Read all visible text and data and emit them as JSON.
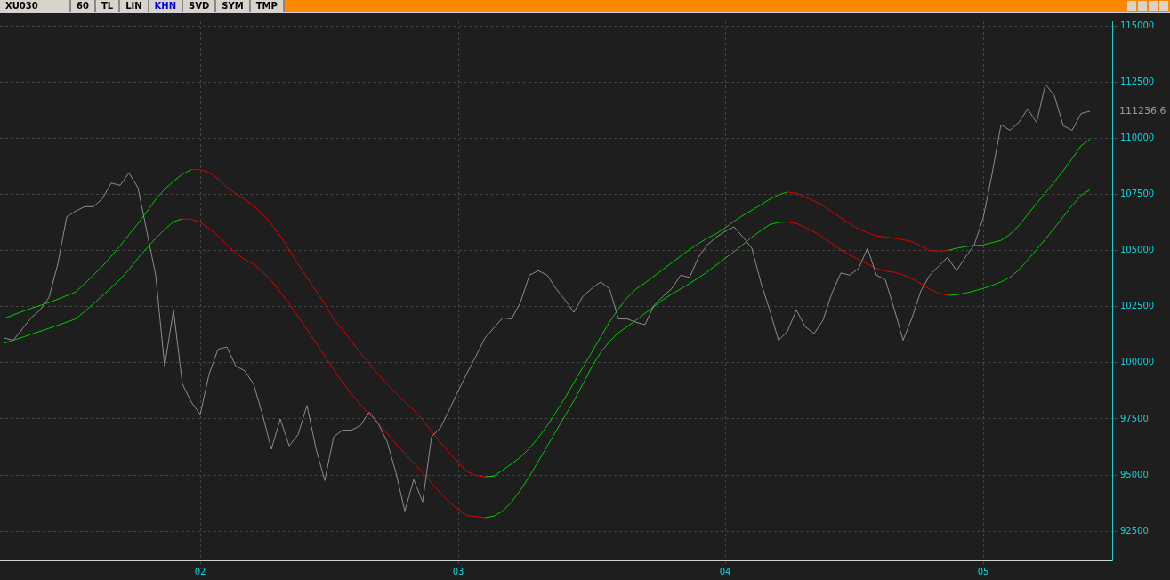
{
  "chart_data": {
    "type": "line",
    "title": "XU030",
    "annotations": [
      "60",
      "TL",
      "LIN",
      "KHN",
      "SVD",
      "SYM",
      "TMP",
      "111236.6"
    ],
    "categories": [
      null,
      null,
      null,
      null,
      null,
      null,
      null,
      null,
      null,
      null,
      null,
      null,
      null,
      null,
      null,
      null,
      null,
      null,
      null,
      null,
      null,
      null,
      "02",
      null,
      null,
      null,
      null,
      null,
      null,
      null,
      null,
      null,
      null,
      null,
      null,
      null,
      null,
      null,
      null,
      null,
      null,
      null,
      null,
      null,
      null,
      null,
      null,
      null,
      null,
      null,
      null,
      "03",
      null,
      null,
      null,
      null,
      null,
      null,
      null,
      null,
      null,
      null,
      null,
      null,
      null,
      null,
      null,
      null,
      null,
      null,
      null,
      null,
      null,
      null,
      null,
      null,
      null,
      null,
      null,
      null,
      null,
      "04",
      null,
      null,
      null,
      null,
      null,
      null,
      null,
      null,
      null,
      null,
      null,
      null,
      null,
      null,
      null,
      null,
      null,
      null,
      null,
      null,
      null,
      null,
      null,
      null,
      null,
      null,
      null,
      null,
      "05",
      null,
      null,
      null,
      null,
      null,
      null,
      null,
      null,
      null,
      null,
      null,
      null,
      null,
      null
    ],
    "ylim": [
      91200,
      115200
    ],
    "yticks": [
      92500,
      95000,
      97500,
      100000,
      102500,
      105000,
      107500,
      110000,
      112500,
      115000
    ],
    "grid": true,
    "legend": false,
    "marker": "none",
    "line_style": "solid",
    "series": [
      {
        "color": "#8c8c8c",
        "values": [
          101100,
          101000,
          101500,
          102000,
          102350,
          102900,
          104400,
          106500,
          106750,
          106950,
          106950,
          107300,
          108000,
          107900,
          108450,
          107800,
          105850,
          103900,
          99850,
          102350,
          99050,
          98250,
          97700,
          99500,
          100600,
          100700,
          99850,
          99650,
          99050,
          97700,
          96150,
          97500,
          96300,
          96800,
          98100,
          96200,
          94750,
          96700,
          97000,
          97000,
          97200,
          97800,
          97300,
          96500,
          95100,
          93400,
          94800,
          93800,
          96700,
          97100,
          97900,
          98750,
          99550,
          100300,
          101100,
          101550,
          102000,
          101950,
          102700,
          103900,
          104100,
          103900,
          103300,
          102800,
          102250,
          102950,
          103300,
          103600,
          103300,
          101950,
          101950,
          101800,
          101700,
          102550,
          102950,
          103300,
          103900,
          103800,
          104700,
          105250,
          105600,
          105850,
          106050,
          105600,
          105100,
          103600,
          102350,
          101000,
          101400,
          102350,
          101600,
          101300,
          101900,
          103100,
          104000,
          103900,
          104200,
          105100,
          103900,
          103700,
          102400,
          101000,
          102000,
          103200,
          103900,
          104300,
          104700,
          104100,
          104700,
          105250,
          106450,
          108400,
          110600,
          110350,
          110700,
          111300,
          110700,
          112400,
          111900,
          110550,
          110350,
          111100,
          111200,
          null,
          null
        ]
      },
      {
        "color": "#00cc00",
        "values": [
          101980,
          102130,
          102280,
          102420,
          102550,
          102680,
          102830,
          102990,
          103150,
          103520,
          103900,
          104300,
          104740,
          105210,
          105700,
          106200,
          106730,
          107280,
          107720,
          108080,
          108400,
          108600,
          null,
          null,
          null,
          null,
          null,
          null,
          null,
          null,
          null,
          null,
          null,
          null,
          null,
          null,
          null,
          null,
          null,
          null,
          null,
          null,
          null,
          null,
          null,
          null,
          null,
          null,
          null,
          null,
          null,
          null,
          null,
          null,
          94920,
          94950,
          95220,
          95500,
          95800,
          96190,
          96660,
          97200,
          97800,
          98440,
          99110,
          99790,
          100460,
          101140,
          101810,
          102400,
          102900,
          103290,
          103560,
          103850,
          104150,
          104450,
          104750,
          105040,
          105310,
          105550,
          105750,
          106000,
          106300,
          106560,
          106790,
          107030,
          107280,
          107470,
          107600,
          null,
          null,
          null,
          null,
          null,
          null,
          null,
          null,
          null,
          null,
          null,
          null,
          null,
          null,
          null,
          null,
          null,
          105000,
          105100,
          105170,
          105220,
          105250,
          105350,
          105450,
          105720,
          106100,
          106600,
          107090,
          107560,
          108050,
          108550,
          109090,
          109660,
          109950,
          null,
          null
        ]
      },
      {
        "color": "#e00000",
        "values": [
          null,
          null,
          null,
          null,
          null,
          null,
          null,
          null,
          null,
          null,
          null,
          null,
          null,
          null,
          null,
          null,
          null,
          null,
          null,
          null,
          null,
          108600,
          108600,
          108470,
          108200,
          107800,
          107530,
          107270,
          107000,
          106630,
          106180,
          105650,
          105020,
          104400,
          103800,
          103210,
          102640,
          101920,
          101490,
          100950,
          100450,
          99960,
          99490,
          99050,
          98650,
          98260,
          97890,
          97450,
          96950,
          96460,
          95990,
          95550,
          95150,
          94980,
          94920,
          null,
          null,
          null,
          null,
          null,
          null,
          null,
          null,
          null,
          null,
          null,
          null,
          null,
          null,
          null,
          null,
          null,
          null,
          null,
          null,
          null,
          null,
          null,
          null,
          null,
          null,
          null,
          null,
          null,
          null,
          null,
          null,
          null,
          107600,
          107550,
          107380,
          107200,
          107000,
          106730,
          106450,
          106200,
          105950,
          105800,
          105650,
          105600,
          105550,
          105480,
          105400,
          105200,
          105000,
          104970,
          105000,
          null,
          null,
          null,
          null,
          null,
          null,
          null,
          null,
          null,
          null,
          null,
          null,
          null,
          null,
          null,
          null,
          null,
          null
        ]
      },
      {
        "color": "#00cc00",
        "values": [
          100870,
          101000,
          101130,
          101270,
          101400,
          101530,
          101670,
          101810,
          101950,
          102280,
          102630,
          102980,
          103340,
          103710,
          104150,
          104650,
          105110,
          105540,
          105930,
          106280,
          106410,
          null,
          null,
          null,
          null,
          null,
          null,
          null,
          null,
          null,
          null,
          null,
          null,
          null,
          null,
          null,
          null,
          null,
          null,
          null,
          null,
          null,
          null,
          null,
          null,
          null,
          null,
          null,
          null,
          null,
          null,
          null,
          null,
          null,
          93100,
          93170,
          93400,
          93800,
          94330,
          94940,
          95610,
          96290,
          96960,
          97640,
          98310,
          99040,
          99810,
          100450,
          100950,
          101340,
          101610,
          101900,
          102200,
          102500,
          102800,
          103060,
          103290,
          103530,
          103780,
          104050,
          104350,
          104650,
          104950,
          105260,
          105590,
          105880,
          106150,
          106250,
          106270,
          null,
          null,
          null,
          null,
          null,
          null,
          null,
          null,
          null,
          null,
          null,
          null,
          null,
          null,
          null,
          null,
          null,
          103000,
          103030,
          103100,
          103200,
          103310,
          103440,
          103600,
          103800,
          104130,
          104580,
          105040,
          105510,
          106000,
          106500,
          107000,
          107460,
          107700,
          null,
          null
        ]
      },
      {
        "color": "#e00000",
        "values": [
          null,
          null,
          null,
          null,
          null,
          null,
          null,
          null,
          null,
          null,
          null,
          null,
          null,
          null,
          null,
          null,
          null,
          null,
          null,
          null,
          106410,
          106380,
          106250,
          105980,
          105650,
          105250,
          104880,
          104600,
          104400,
          104070,
          103650,
          103150,
          102620,
          102060,
          101490,
          100900,
          100300,
          99710,
          99140,
          98610,
          98140,
          97700,
          97300,
          96860,
          96390,
          95950,
          95550,
          95110,
          94640,
          94200,
          93800,
          93470,
          93200,
          93150,
          93100,
          null,
          null,
          null,
          null,
          null,
          null,
          null,
          null,
          null,
          null,
          null,
          null,
          null,
          null,
          null,
          null,
          null,
          null,
          null,
          null,
          null,
          null,
          null,
          null,
          null,
          null,
          null,
          null,
          null,
          null,
          null,
          null,
          null,
          106270,
          106200,
          106030,
          105830,
          105580,
          105310,
          105040,
          104800,
          104600,
          104400,
          104200,
          104080,
          104030,
          103910,
          103740,
          103530,
          103280,
          103100,
          103000,
          null,
          null,
          null,
          null,
          null,
          null,
          null,
          null,
          null,
          null,
          null,
          null,
          null,
          null,
          null,
          null,
          null,
          null
        ]
      }
    ]
  }
}
